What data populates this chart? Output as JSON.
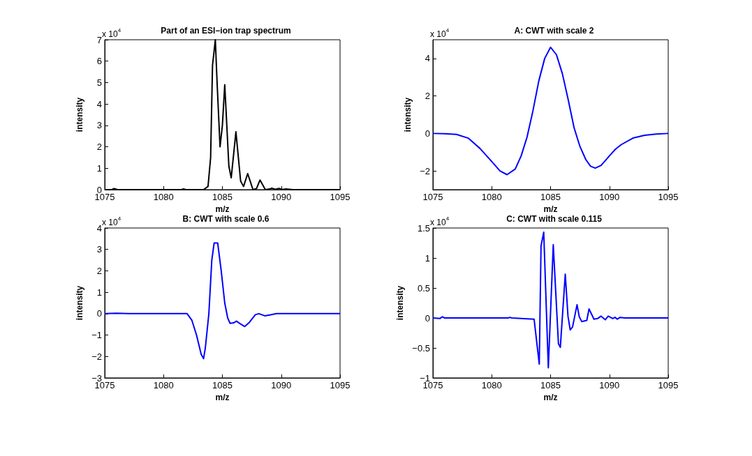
{
  "chart_data": [
    {
      "type": "line",
      "title": "Part of an ESI−ion trap spectrum",
      "xlabel": "m/z",
      "ylabel": "intensity",
      "annotations": [
        "x 10$^{4}$"
      ],
      "xlim": [
        1075,
        1095
      ],
      "xticks": [
        1075,
        1080,
        1085,
        1090,
        1095
      ],
      "ylim": [
        0,
        7
      ],
      "yticks": [
        0,
        1,
        2,
        3,
        4,
        5,
        6,
        7
      ],
      "series": [
        {
          "color": "#000000",
          "x": [
            1075,
            1075.6,
            1075.8,
            1076.1,
            1081.5,
            1081.7,
            1081.9,
            1083.4,
            1083.78,
            1084.0,
            1084.16,
            1084.4,
            1084.55,
            1084.8,
            1085.0,
            1085.2,
            1085.55,
            1085.75,
            1086.15,
            1086.55,
            1086.8,
            1087.15,
            1087.6,
            1087.9,
            1088.2,
            1088.65,
            1089.0,
            1089.2,
            1089.5,
            1089.8,
            1090.1,
            1090.4,
            1091,
            1095
          ],
          "values": [
            0,
            0,
            0.05,
            0,
            0,
            0.03,
            0,
            0,
            0.15,
            1.5,
            5.8,
            7.0,
            5.0,
            2.0,
            3.0,
            4.9,
            1.1,
            0.55,
            2.7,
            0.4,
            0.15,
            0.75,
            0,
            0.05,
            0.45,
            0,
            0.03,
            0.07,
            0.02,
            0.06,
            0.01,
            0.03,
            0,
            0
          ]
        }
      ]
    },
    {
      "type": "line",
      "title": "A: CWT with scale 2",
      "xlabel": "m/z",
      "ylabel": "intensity",
      "annotations": [
        "x 10$^{4}$"
      ],
      "xlim": [
        1075,
        1095
      ],
      "xticks": [
        1075,
        1080,
        1085,
        1090,
        1095
      ],
      "ylim": [
        -3,
        5
      ],
      "yticks": [
        -2,
        0,
        2,
        4
      ],
      "series": [
        {
          "color": "#0000ff",
          "x": [
            1075,
            1076,
            1077,
            1078,
            1079,
            1080,
            1080.7,
            1081.3,
            1082,
            1082.5,
            1083,
            1083.5,
            1084,
            1084.5,
            1085,
            1085.5,
            1086,
            1086.5,
            1087,
            1087.5,
            1088,
            1088.4,
            1088.8,
            1089.3,
            1090,
            1090.5,
            1091,
            1092,
            1093,
            1094,
            1095
          ],
          "values": [
            0,
            -0.01,
            -0.05,
            -0.25,
            -0.8,
            -1.5,
            -2.0,
            -2.2,
            -1.9,
            -1.2,
            -0.2,
            1.2,
            2.8,
            4.0,
            4.6,
            4.2,
            3.2,
            1.8,
            0.3,
            -0.7,
            -1.4,
            -1.75,
            -1.85,
            -1.7,
            -1.2,
            -0.85,
            -0.6,
            -0.25,
            -0.1,
            -0.03,
            0
          ]
        }
      ]
    },
    {
      "type": "line",
      "title": "B: CWT with scale 0.6",
      "xlabel": "m/z",
      "ylabel": "intensity",
      "annotations": [
        "x 10$^{4}$"
      ],
      "xlim": [
        1075,
        1095
      ],
      "xticks": [
        1075,
        1080,
        1085,
        1090,
        1095
      ],
      "ylim": [
        -3,
        4
      ],
      "yticks": [
        -3,
        -2,
        -1,
        0,
        1,
        2,
        3,
        4
      ],
      "series": [
        {
          "color": "#0000ff",
          "x": [
            1075,
            1076,
            1077,
            1080,
            1082,
            1082.4,
            1082.8,
            1083.2,
            1083.4,
            1083.55,
            1083.85,
            1084.1,
            1084.3,
            1084.6,
            1084.9,
            1085.2,
            1085.45,
            1085.65,
            1085.95,
            1086.2,
            1086.45,
            1086.9,
            1087.3,
            1087.8,
            1088.1,
            1088.6,
            1089.1,
            1089.6,
            1092,
            1095
          ],
          "values": [
            0,
            0.02,
            0,
            0,
            0,
            -0.3,
            -1.0,
            -1.9,
            -2.1,
            -1.6,
            0,
            2.5,
            3.3,
            3.3,
            2.0,
            0.5,
            -0.2,
            -0.45,
            -0.43,
            -0.35,
            -0.45,
            -0.6,
            -0.4,
            -0.05,
            0,
            -0.1,
            -0.05,
            0,
            0,
            0
          ]
        }
      ]
    },
    {
      "type": "line",
      "title": "C: CWT with scale 0.115",
      "xlabel": "m/z",
      "ylabel": "intensity",
      "annotations": [
        "x 10$^{4}$"
      ],
      "xlim": [
        1075,
        1095
      ],
      "xticks": [
        1075,
        1080,
        1085,
        1090,
        1095
      ],
      "ylim": [
        -1,
        1.5
      ],
      "yticks": [
        -1,
        -0.5,
        0,
        0.5,
        1,
        1.5
      ],
      "series": [
        {
          "color": "#0000ff",
          "x": [
            1075,
            1075.6,
            1075.8,
            1076,
            1081.4,
            1081.54,
            1081.7,
            1083.6,
            1084.04,
            1084.19,
            1084.42,
            1084.81,
            1085.23,
            1085.67,
            1085.83,
            1086.25,
            1086.48,
            1086.67,
            1086.87,
            1087.25,
            1087.44,
            1087.65,
            1088.08,
            1088.27,
            1088.69,
            1089.0,
            1089.29,
            1089.65,
            1089.9,
            1090.29,
            1090.48,
            1090.67,
            1090.92,
            1091.3,
            1095
          ],
          "values": [
            0,
            -0.01,
            0.02,
            0,
            0,
            0.01,
            0,
            -0.02,
            -0.77,
            1.2,
            1.43,
            -0.83,
            1.22,
            -0.43,
            -0.49,
            0.73,
            0.03,
            -0.2,
            -0.15,
            0.22,
            0.02,
            -0.06,
            -0.04,
            0.15,
            -0.02,
            -0.01,
            0.03,
            -0.03,
            0.03,
            -0.01,
            0.01,
            -0.02,
            0.01,
            0,
            0
          ]
        }
      ]
    }
  ]
}
